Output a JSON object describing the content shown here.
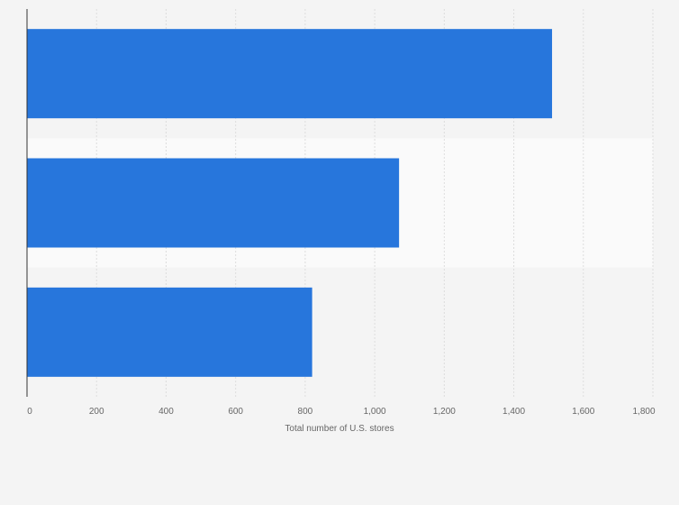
{
  "chart_data": {
    "type": "bar",
    "orientation": "horizontal",
    "categories": [
      "",
      "",
      ""
    ],
    "values": [
      1510,
      1070,
      820
    ],
    "xlabel": "Total number of U.S. stores",
    "ylabel": "",
    "xlim": [
      0,
      1800
    ],
    "ticks": [
      {
        "value": 0,
        "label": "0"
      },
      {
        "value": 200,
        "label": "200"
      },
      {
        "value": 400,
        "label": "400"
      },
      {
        "value": 600,
        "label": "600"
      },
      {
        "value": 800,
        "label": "800"
      },
      {
        "value": 1000,
        "label": "1,000"
      },
      {
        "value": 1200,
        "label": "1,200"
      },
      {
        "value": 1400,
        "label": "1,400"
      },
      {
        "value": 1600,
        "label": "1,600"
      },
      {
        "value": 1800,
        "label": "1,800"
      }
    ],
    "grid": true,
    "legend": "none",
    "colors": {
      "bar": "#2776dc",
      "background": "#f4f4f4",
      "band": "#fafafa",
      "grid": "#dddddd",
      "axis": "#333333"
    }
  }
}
